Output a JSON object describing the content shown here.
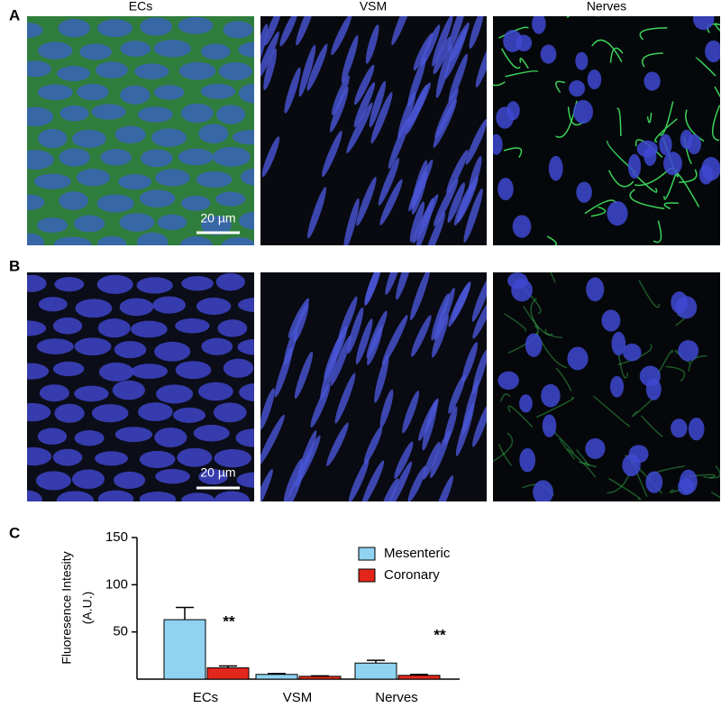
{
  "panel_labels": [
    "A",
    "B",
    "C"
  ],
  "columns": [
    "ECs",
    "VSM",
    "Nerves"
  ],
  "scale_bar": "20 µm",
  "chart_data": {
    "type": "bar",
    "categories": [
      "ECs",
      "VSM",
      "Nerves"
    ],
    "series": [
      {
        "name": "Mesenteric",
        "color": "#8fd3f0",
        "values": [
          63,
          5,
          17
        ],
        "errors": [
          13,
          1,
          3
        ]
      },
      {
        "name": "Coronary",
        "color": "#e3261c",
        "values": [
          12,
          3,
          4
        ],
        "errors": [
          2,
          0.5,
          1
        ]
      }
    ],
    "ylabel": [
      "Fluoresence Intesity",
      "(A.U.)"
    ],
    "ylim": [
      0,
      150
    ],
    "yticks": [
      50,
      100,
      150
    ],
    "annotations": [
      "**",
      "**"
    ]
  }
}
